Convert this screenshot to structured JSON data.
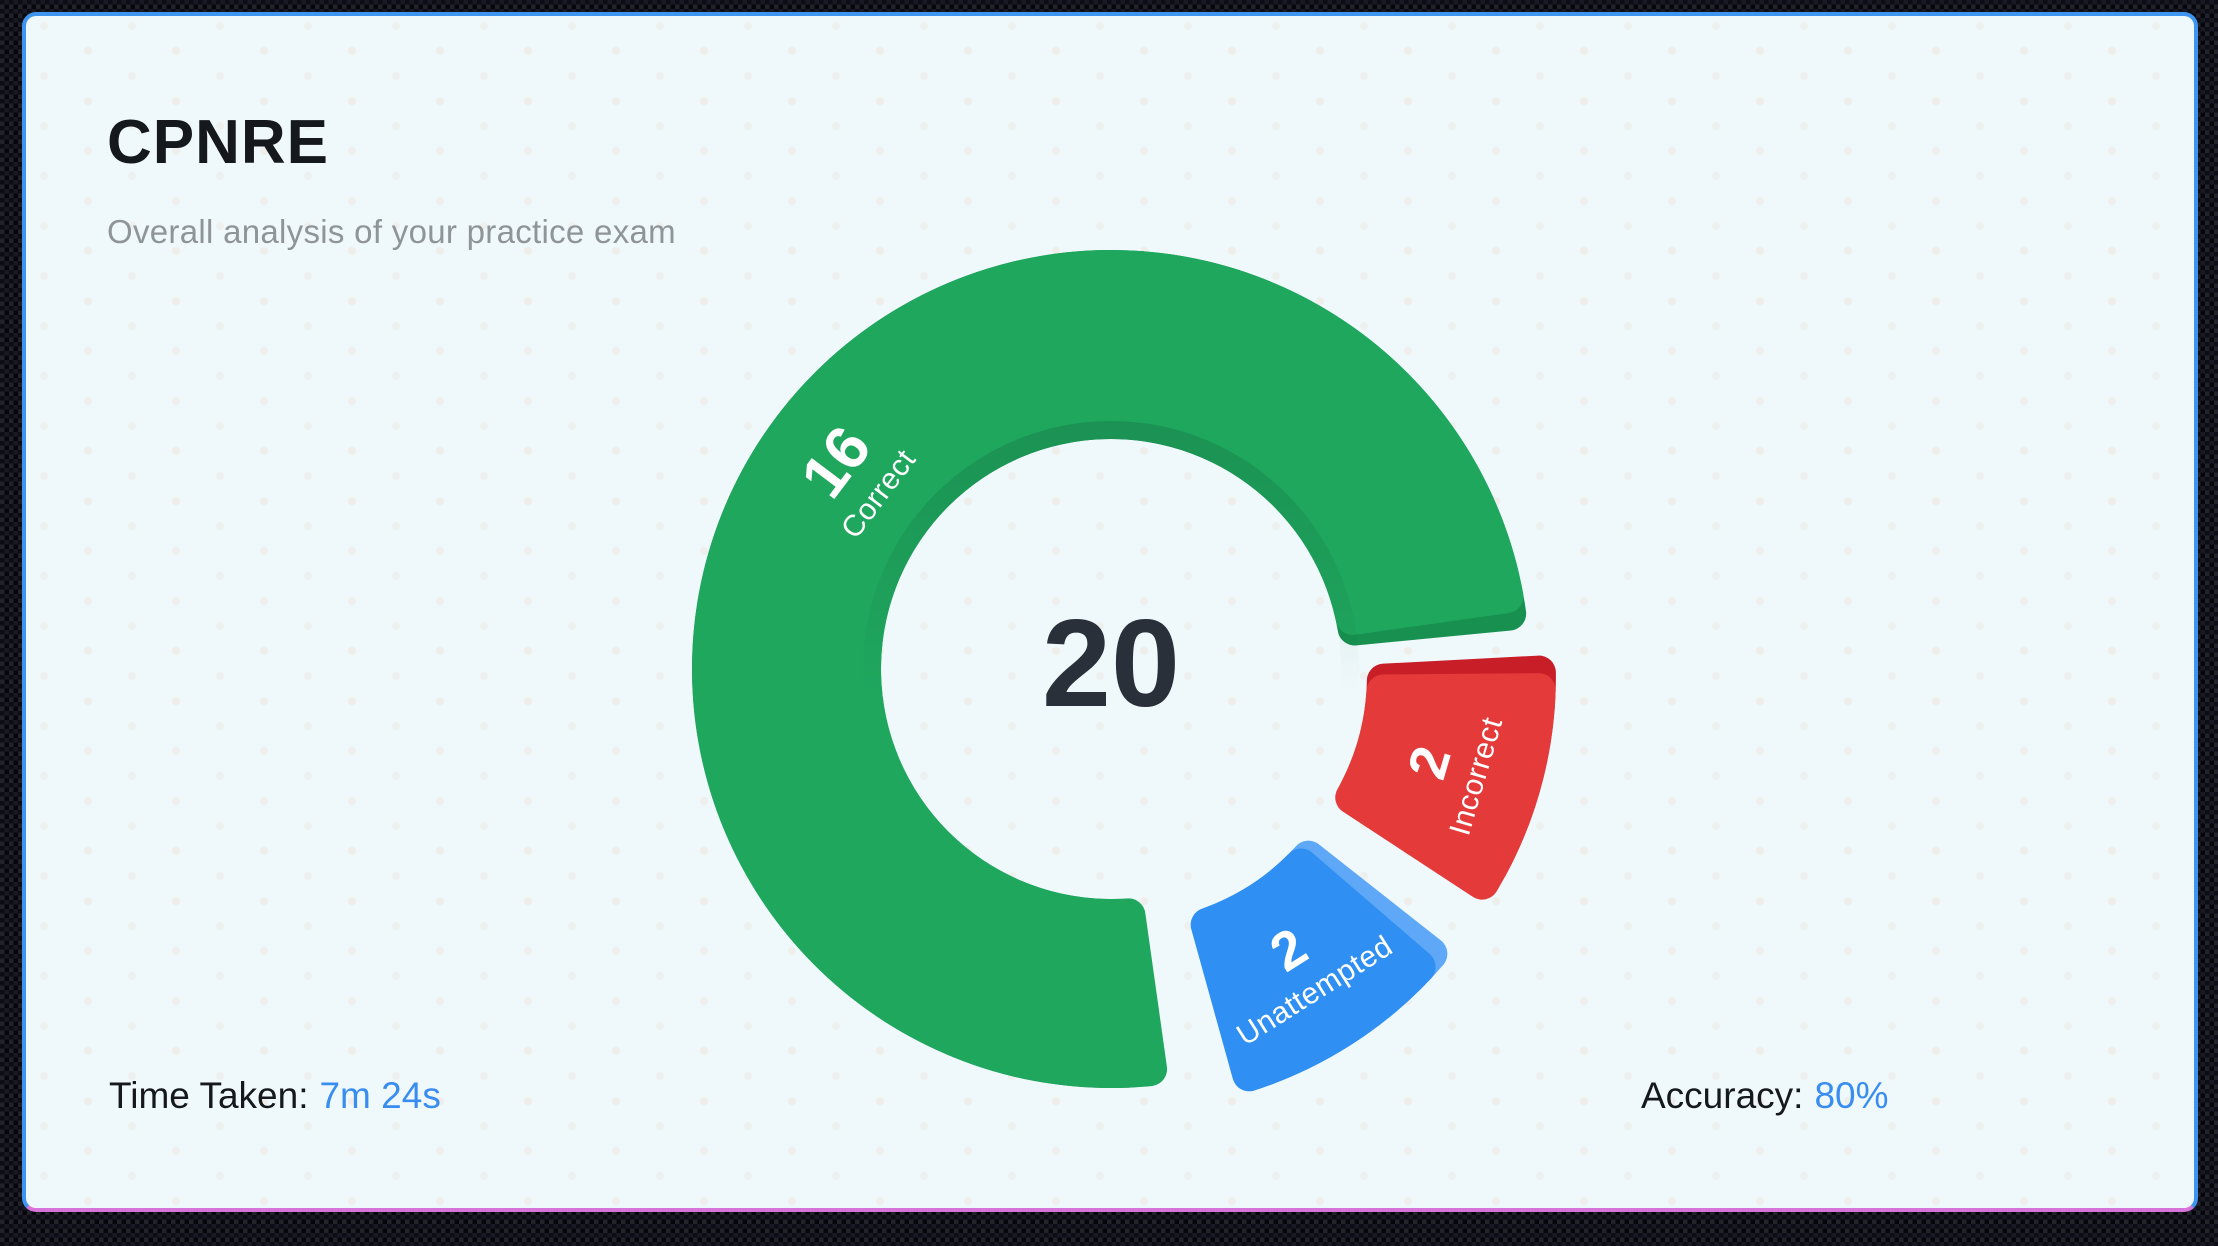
{
  "header": {
    "title": "CPNRE",
    "subtitle": "Overall analysis of your practice exam"
  },
  "chart_data": {
    "type": "pie",
    "subtype": "donut",
    "center_total": "20",
    "total_questions": 20,
    "legend_position": "labels-inside-slices",
    "slices": [
      {
        "label": "Correct",
        "value": 16,
        "color": "#1FA75E",
        "accent": "#189150",
        "exploded": false
      },
      {
        "label": "Incorrect",
        "value": 2,
        "color": "#E43A3A",
        "accent": "#C81E28",
        "exploded": true
      },
      {
        "label": "Unattempted",
        "value": 2,
        "color": "#2F8FF2",
        "accent": "#5EA8F7",
        "exploded": true
      }
    ]
  },
  "footer": {
    "time_label": "Time Taken:",
    "time_value": "7m 24s",
    "accuracy_label": "Accuracy:",
    "accuracy_value": "80%"
  },
  "colors": {
    "card_background": "#EFF9FB",
    "focus_border": "#3D95EF",
    "bottom_line": "#D873DA",
    "value_accent": "#3A8DF0",
    "center_text": "#2A303A",
    "title_text": "#15181C",
    "subtitle_text": "#8F9499"
  }
}
